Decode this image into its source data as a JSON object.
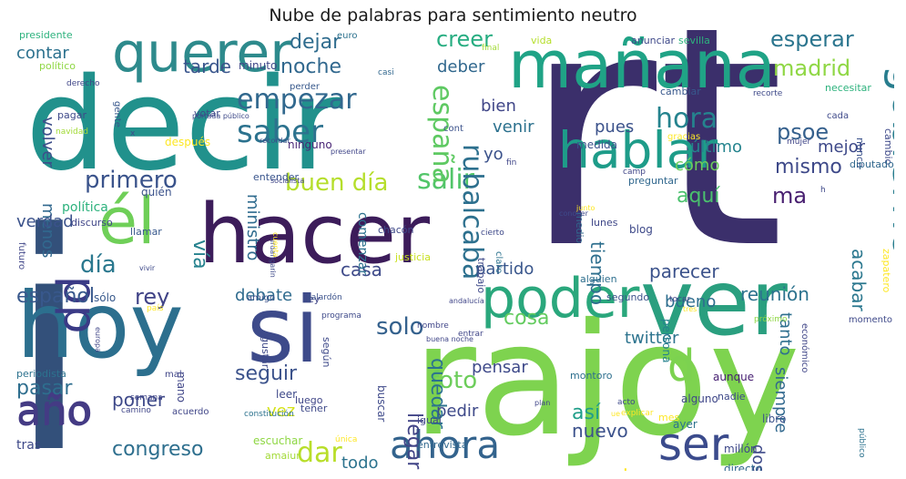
{
  "title": "Nube de palabras para sentimiento neutro",
  "words": [
    {
      "text": "rt",
      "color": "#3b2f6b"
    },
    {
      "text": "i",
      "color": "#33507a"
    },
    {
      "text": "rajoy",
      "color": "#7ed34f"
    },
    {
      "text": "decir",
      "color": "#21918c"
    },
    {
      "text": "hacer",
      "color": "#3c1c5a"
    },
    {
      "text": "hoy",
      "color": "#2c6f8e"
    },
    {
      "text": "si",
      "color": "#3d4a8a"
    },
    {
      "text": "ver",
      "color": "#2a9f7f"
    },
    {
      "text": "mañana",
      "color": "#20a386"
    },
    {
      "text": "poder",
      "color": "#2aa77c"
    },
    {
      "text": "querer",
      "color": "#2d8a8c"
    },
    {
      "text": "él",
      "color": "#6fcf58"
    },
    {
      "text": "hablar",
      "color": "#1e9c89"
    },
    {
      "text": "gobierno",
      "color": "#287d8e"
    },
    {
      "text": "año",
      "color": "#443b84"
    },
    {
      "text": "ahora",
      "color": "#33638d"
    },
    {
      "text": "ser",
      "color": "#3b4b8c"
    },
    {
      "text": "pp",
      "color": "#3a3a86"
    },
    {
      "text": "d",
      "color": "#7cd250"
    },
    {
      "text": "saber",
      "color": "#2c728e"
    },
    {
      "text": "empezar",
      "color": "#31688e"
    },
    {
      "text": "primero",
      "color": "#3a538b"
    },
    {
      "text": "buen día",
      "color": "#b5de2b"
    },
    {
      "text": "salir",
      "color": "#52c569"
    },
    {
      "text": "hora",
      "color": "#25838e"
    },
    {
      "text": "psoe",
      "color": "#35608d"
    },
    {
      "text": "mismo",
      "color": "#3e4989"
    },
    {
      "text": "ma",
      "color": "#481f70"
    },
    {
      "text": "rubalcaba",
      "color": "#2d708e"
    },
    {
      "text": "españa",
      "color": "#5ec962"
    },
    {
      "text": "madrid",
      "color": "#8fd744"
    },
    {
      "text": "esperar",
      "color": "#2b758e"
    },
    {
      "text": "creer",
      "color": "#27ad81"
    },
    {
      "text": "dejar",
      "color": "#2f6c8e"
    },
    {
      "text": "noche",
      "color": "#31688e"
    },
    {
      "text": "deber",
      "color": "#30678d"
    },
    {
      "text": "tarde",
      "color": "#39558c"
    },
    {
      "text": "contar",
      "color": "#2c718e"
    },
    {
      "text": "volver",
      "color": "#3d4e8a"
    },
    {
      "text": "ministro",
      "color": "#2f6b8e"
    },
    {
      "text": "menos",
      "color": "#31688e"
    },
    {
      "text": "verdad",
      "color": "#3b528b"
    },
    {
      "text": "vía",
      "color": "#26828e"
    },
    {
      "text": "día",
      "color": "#2a788e"
    },
    {
      "text": "español",
      "color": "#38588c"
    },
    {
      "text": "rey",
      "color": "#404387"
    },
    {
      "text": "pasar",
      "color": "#2e6e8e"
    },
    {
      "text": "poner",
      "color": "#3e4989"
    },
    {
      "text": "año",
      "color": "#443b84"
    },
    {
      "text": "congreso",
      "color": "#2e6f8e"
    },
    {
      "text": "dar",
      "color": "#b8de29"
    },
    {
      "text": "todo",
      "color": "#2c738e"
    },
    {
      "text": "seguir",
      "color": "#3b528b"
    },
    {
      "text": "debate",
      "color": "#2f6b8e"
    },
    {
      "text": "vez",
      "color": "#d5e21a"
    },
    {
      "text": "solo",
      "color": "#34618d"
    },
    {
      "text": "casa",
      "color": "#3e4a89"
    },
    {
      "text": "partido",
      "color": "#39568c"
    },
    {
      "text": "foto",
      "color": "#6ccd5a"
    },
    {
      "text": "llegar",
      "color": "#414487"
    },
    {
      "text": "pedir",
      "color": "#3e4989"
    },
    {
      "text": "quedar",
      "color": "#2c738e"
    },
    {
      "text": "así",
      "color": "#1f9e89"
    },
    {
      "text": "nuevo",
      "color": "#3b518b"
    },
    {
      "text": "cosa",
      "color": "#63cb5f"
    },
    {
      "text": "twitter",
      "color": "#2c738e"
    },
    {
      "text": "pensar",
      "color": "#3e4989"
    },
    {
      "text": "tiempo",
      "color": "#2e6f8e"
    },
    {
      "text": "parecer",
      "color": "#3b528b"
    },
    {
      "text": "reunión",
      "color": "#2c728e"
    },
    {
      "text": "bueno",
      "color": "#2e6e8e"
    },
    {
      "text": "aquí",
      "color": "#4ac16d"
    },
    {
      "text": "cómo",
      "color": "#6ccd5a"
    },
    {
      "text": "acabar",
      "color": "#2a778e"
    },
    {
      "text": "siempre",
      "color": "#31688e"
    },
    {
      "text": "tanto",
      "color": "#2e6f8e"
    },
    {
      "text": "dos",
      "color": "#3e4989"
    },
    {
      "text": "último",
      "color": "#25848e"
    },
    {
      "text": "mejor",
      "color": "#3e4989"
    },
    {
      "text": "pues",
      "color": "#3b528b"
    },
    {
      "text": "bien",
      "color": "#404688"
    },
    {
      "text": "venir",
      "color": "#2c718e"
    },
    {
      "text": "yo",
      "color": "#3b528b"
    },
    {
      "text": "presidente",
      "color": "#2db27d"
    },
    {
      "text": "político",
      "color": "#8fd744"
    },
    {
      "text": "derecho",
      "color": "#404688"
    },
    {
      "text": "pagar",
      "color": "#3e4989"
    },
    {
      "text": "después",
      "color": "#fde725"
    },
    {
      "text": "gente",
      "color": "#38588c"
    },
    {
      "text": "votar",
      "color": "#3e4989"
    },
    {
      "text": "perder",
      "color": "#38598c"
    },
    {
      "text": "minuto",
      "color": "#3f4788"
    },
    {
      "text": "casi",
      "color": "#31688e"
    },
    {
      "text": "ninguno",
      "color": "#482475"
    },
    {
      "text": "recordar",
      "color": "#3b528b"
    },
    {
      "text": "entender",
      "color": "#39558c"
    },
    {
      "text": "quién",
      "color": "#3b528b"
    },
    {
      "text": "llamar",
      "color": "#38598c"
    },
    {
      "text": "chacón",
      "color": "#3e4989"
    },
    {
      "text": "lunes",
      "color": "#3f4788"
    },
    {
      "text": "blog",
      "color": "#3e4989"
    },
    {
      "text": "alguien",
      "color": "#2e6f8e"
    },
    {
      "text": "segundo",
      "color": "#3b528b"
    },
    {
      "text": "persona",
      "color": "#26828e"
    },
    {
      "text": "montoro",
      "color": "#2e6f8e"
    },
    {
      "text": "aunque",
      "color": "#482173"
    },
    {
      "text": "nadie",
      "color": "#3e4989"
    },
    {
      "text": "alguno",
      "color": "#3f4788"
    },
    {
      "text": "libro",
      "color": "#3b528b"
    },
    {
      "text": "ayer",
      "color": "#2c728e"
    },
    {
      "text": "millón",
      "color": "#3e4989"
    },
    {
      "text": "directo",
      "color": "#31688e"
    },
    {
      "text": "buscar",
      "color": "#3e4989"
    },
    {
      "text": "igual",
      "color": "#404688"
    },
    {
      "text": "entrevista",
      "color": "#31688e"
    },
    {
      "text": "llevar",
      "color": "#38588c"
    },
    {
      "text": "periodista",
      "color": "#2c728e"
    },
    {
      "text": "tras",
      "color": "#3e4989"
    },
    {
      "text": "escuchar",
      "color": "#8fd744"
    },
    {
      "text": "amaiur",
      "color": "#a2da37"
    },
    {
      "text": "luego",
      "color": "#404688"
    },
    {
      "text": "tener",
      "color": "#3e4989"
    },
    {
      "text": "leer",
      "color": "#3e4989"
    },
    {
      "text": "sólo",
      "color": "#38598c"
    },
    {
      "text": "amigo",
      "color": "#3b528b"
    },
    {
      "text": "discurso",
      "color": "#404688"
    },
    {
      "text": "comenzar",
      "color": "#2c728e"
    },
    {
      "text": "ley",
      "color": "#404688"
    },
    {
      "text": "justicia",
      "color": "#c8e020"
    },
    {
      "text": "vida",
      "color": "#b5de2b"
    },
    {
      "text": "sevilla",
      "color": "#2db27d"
    },
    {
      "text": "anunciar",
      "color": "#3e4989"
    },
    {
      "text": "cambiar",
      "color": "#38588c"
    },
    {
      "text": "necesitar",
      "color": "#2db27d"
    },
    {
      "text": "cada",
      "color": "#3e4989"
    },
    {
      "text": "nunca",
      "color": "#3b528b"
    },
    {
      "text": "cambio",
      "color": "#3e4989"
    },
    {
      "text": "diputado",
      "color": "#31688e"
    },
    {
      "text": "zapatero",
      "color": "#fde725"
    },
    {
      "text": "medio",
      "color": "#31688e"
    },
    {
      "text": "medida",
      "color": "#3b528b"
    },
    {
      "text": "preguntar",
      "color": "#31688e"
    },
    {
      "text": "trabajo",
      "color": "#3e4989"
    },
    {
      "text": "euro",
      "color": "#2c728e"
    },
    {
      "text": "final",
      "color": "#a2da37"
    },
    {
      "text": "presentar",
      "color": "#404688"
    },
    {
      "text": "socialista",
      "color": "#404688"
    },
    {
      "text": "conocer",
      "color": "#3e4989"
    },
    {
      "text": "cierto",
      "color": "#3e4989"
    },
    {
      "text": "urdangarin",
      "color": "#3e4989"
    },
    {
      "text": "programa",
      "color": "#3e4989"
    },
    {
      "text": "público",
      "color": "#2c728e"
    },
    {
      "text": "gracias",
      "color": "#fde725"
    },
    {
      "text": "cont",
      "color": "#3b528b"
    },
    {
      "text": "claro",
      "color": "#2c728e"
    },
    {
      "text": "fin",
      "color": "#404688"
    },
    {
      "text": "camp",
      "color": "#404688"
    },
    {
      "text": "económico",
      "color": "#404688"
    },
    {
      "text": "momento",
      "color": "#3e4989"
    },
    {
      "text": "próximo",
      "color": "#8fd744"
    },
    {
      "text": "gustar",
      "color": "#3e4989"
    },
    {
      "text": "según",
      "color": "#3e4989"
    },
    {
      "text": "galardón",
      "color": "#3b528b"
    },
    {
      "text": "constitución",
      "color": "#2c728e"
    },
    {
      "text": "acuerdo",
      "color": "#404688"
    },
    {
      "text": "mal",
      "color": "#404688"
    },
    {
      "text": "semana",
      "color": "#404688"
    },
    {
      "text": "camino",
      "color": "#404688"
    },
    {
      "text": "única",
      "color": "#fde725"
    },
    {
      "text": "mano",
      "color": "#404688"
    },
    {
      "text": "futuro",
      "color": "#404688"
    },
    {
      "text": "política",
      "color": "#2db27d"
    },
    {
      "text": "navidad",
      "color": "#a2da37"
    },
    {
      "text": "x",
      "color": "#3e4989"
    },
    {
      "text": "acto",
      "color": "#3e4989"
    },
    {
      "text": "mes",
      "color": "#fde725"
    },
    {
      "text": "ue",
      "color": "#fde725"
    },
    {
      "text": "plan",
      "color": "#404688"
    },
    {
      "text": "explicar",
      "color": "#fde725"
    },
    {
      "text": "nombre",
      "color": "#404688"
    },
    {
      "text": "entrar",
      "color": "#404688"
    },
    {
      "text": "buena noche",
      "color": "#404688"
    },
    {
      "text": "andalucía",
      "color": "#404688"
    },
    {
      "text": "tocar",
      "color": "#404688"
    },
    {
      "text": "tres",
      "color": "#fde725"
    },
    {
      "text": "cuenta",
      "color": "#fde725"
    },
    {
      "text": "junto",
      "color": "#fde725"
    },
    {
      "text": "europa",
      "color": "#404688"
    },
    {
      "text": "portada público",
      "color": "#3e4989"
    },
    {
      "text": "vivir",
      "color": "#3e4989"
    },
    {
      "text": "país",
      "color": "#fde725"
    },
    {
      "text": "pregunta",
      "color": "#fde725"
    },
    {
      "text": "recorte",
      "color": "#3e4989"
    },
    {
      "text": "mujer",
      "color": "#404688"
    },
    {
      "text": "h",
      "color": "#3e4989"
    }
  ]
}
